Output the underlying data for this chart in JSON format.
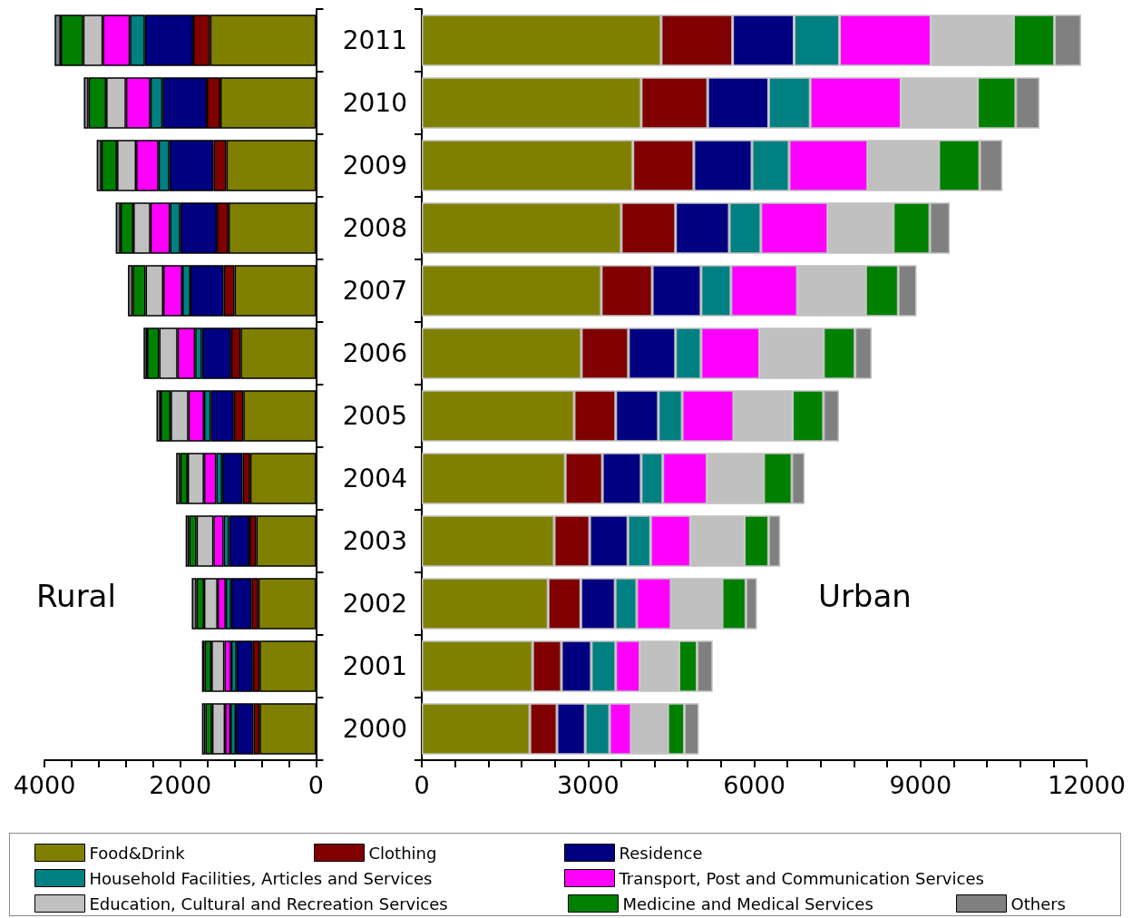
{
  "chart_data": [
    {
      "type": "bar",
      "orientation": "horizontal",
      "stacked": true,
      "legend": "bottom",
      "tick_labels": "x",
      "grid": false,
      "categories": [
        "2011",
        "2010",
        "2009",
        "2008",
        "2007",
        "2006",
        "2005",
        "2004",
        "2003",
        "2002",
        "2001",
        "2000"
      ],
      "xlim": [
        4000,
        0
      ],
      "xticks": [
        {
          "value": 4000,
          "label": "4000"
        },
        {
          "value": 3600,
          "label": null
        },
        {
          "value": 3200,
          "label": null
        },
        {
          "value": 2800,
          "label": null
        },
        {
          "value": 2400,
          "label": null
        },
        {
          "value": 2000,
          "label": "2000"
        },
        {
          "value": 1600,
          "label": null
        },
        {
          "value": 1200,
          "label": null
        },
        {
          "value": 800,
          "label": null
        },
        {
          "value": 400,
          "label": null
        },
        {
          "value": 0,
          "label": "0"
        }
      ],
      "annotations": [
        "Rural"
      ],
      "series": [
        {
          "name": "Food&Drink",
          "color": "#808000",
          "values": [
            1560,
            1410,
            1320,
            1290,
            1200,
            1110,
            1070,
            970,
            880,
            850,
            830,
            830
          ]
        },
        {
          "name": "Clothing",
          "color": "#800000",
          "values": [
            250,
            200,
            190,
            170,
            160,
            140,
            140,
            110,
            100,
            100,
            100,
            90
          ]
        },
        {
          "name": "Residence",
          "color": "#000080",
          "values": [
            710,
            650,
            650,
            540,
            490,
            430,
            340,
            300,
            300,
            300,
            240,
            260
          ]
        },
        {
          "name": "Household Facilities, Articles and Services",
          "color": "#008080",
          "values": [
            220,
            180,
            160,
            150,
            120,
            100,
            100,
            90,
            80,
            80,
            80,
            80
          ]
        },
        {
          "name": "Transport, Post and Communication Services",
          "color": "#ff00ff",
          "values": [
            400,
            360,
            330,
            290,
            280,
            260,
            230,
            180,
            150,
            120,
            100,
            80
          ]
        },
        {
          "name": "Education, Cultural and Recreation Services",
          "color": "#c0c0c0",
          "values": [
            290,
            290,
            280,
            250,
            260,
            270,
            260,
            240,
            250,
            200,
            190,
            190
          ]
        },
        {
          "name": "Medicine and Medical Services",
          "color": "#008000",
          "values": [
            330,
            260,
            230,
            190,
            190,
            180,
            150,
            110,
            110,
            110,
            100,
            100
          ]
        },
        {
          "name": "Others",
          "color": "#808080",
          "values": [
            90,
            70,
            70,
            70,
            70,
            50,
            60,
            60,
            50,
            70,
            40,
            50
          ]
        }
      ]
    },
    {
      "type": "bar",
      "orientation": "horizontal",
      "stacked": true,
      "legend": "bottom",
      "grid": false,
      "categories": [
        "2011",
        "2010",
        "2009",
        "2008",
        "2007",
        "2006",
        "2005",
        "2004",
        "2003",
        "2002",
        "2001",
        "2000"
      ],
      "xlim": [
        0,
        12000
      ],
      "xticks": [
        {
          "value": 0,
          "label": "0"
        },
        {
          "value": 600,
          "label": null
        },
        {
          "value": 1200,
          "label": null
        },
        {
          "value": 1800,
          "label": null
        },
        {
          "value": 2400,
          "label": null
        },
        {
          "value": 3000,
          "label": "3000"
        },
        {
          "value": 3600,
          "label": null
        },
        {
          "value": 4200,
          "label": null
        },
        {
          "value": 4800,
          "label": null
        },
        {
          "value": 5400,
          "label": null
        },
        {
          "value": 6000,
          "label": "6000"
        },
        {
          "value": 6600,
          "label": null
        },
        {
          "value": 7200,
          "label": null
        },
        {
          "value": 7800,
          "label": null
        },
        {
          "value": 8400,
          "label": null
        },
        {
          "value": 9000,
          "label": "9000"
        },
        {
          "value": 9600,
          "label": null
        },
        {
          "value": 10200,
          "label": null
        },
        {
          "value": 10800,
          "label": null
        },
        {
          "value": 11400,
          "label": null
        },
        {
          "value": 12000,
          "label": "12000"
        }
      ],
      "annotations": [
        "Urban"
      ],
      "series": [
        {
          "name": "Food&Drink",
          "color": "#808000",
          "values": [
            4320,
            3960,
            3810,
            3600,
            3240,
            2880,
            2750,
            2590,
            2390,
            2280,
            2000,
            1950
          ]
        },
        {
          "name": "Clothing",
          "color": "#800000",
          "values": [
            1290,
            1200,
            1100,
            980,
            920,
            850,
            750,
            670,
            640,
            590,
            520,
            490
          ]
        },
        {
          "name": "Residence",
          "color": "#000080",
          "values": [
            1110,
            1100,
            1050,
            970,
            880,
            850,
            770,
            700,
            690,
            620,
            540,
            510
          ]
        },
        {
          "name": "Household Facilities, Articles and Services",
          "color": "#008080",
          "values": [
            820,
            750,
            670,
            570,
            540,
            460,
            430,
            390,
            410,
            390,
            440,
            440
          ]
        },
        {
          "name": "Transport, Post and Communication Services",
          "color": "#ff00ff",
          "values": [
            1650,
            1640,
            1420,
            1210,
            1200,
            1060,
            930,
            800,
            720,
            620,
            440,
            390
          ]
        },
        {
          "name": "Education, Cultural and Recreation Services",
          "color": "#c0c0c0",
          "values": [
            1490,
            1380,
            1280,
            1180,
            1230,
            1150,
            1060,
            1020,
            970,
            920,
            700,
            660
          ]
        },
        {
          "name": "Medicine and Medical Services",
          "color": "#008000",
          "values": [
            740,
            690,
            740,
            660,
            590,
            570,
            560,
            510,
            440,
            430,
            330,
            300
          ]
        },
        {
          "name": "Others",
          "color": "#808080",
          "values": [
            480,
            430,
            410,
            360,
            330,
            300,
            280,
            230,
            210,
            200,
            280,
            260
          ]
        }
      ]
    }
  ]
}
